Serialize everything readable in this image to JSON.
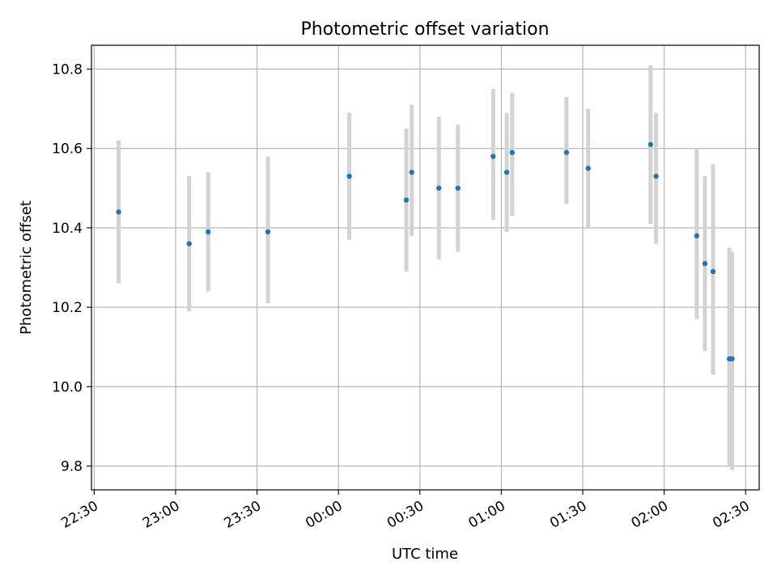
{
  "chart_data": {
    "type": "scatter",
    "title": "Photometric offset variation",
    "xlabel": "UTC time",
    "ylabel": "Photometric offset",
    "grid": true,
    "ylim": [
      9.74,
      10.86
    ],
    "xlim": [
      "22:29",
      "02:35"
    ],
    "y_ticks": [
      9.8,
      10.0,
      10.2,
      10.4,
      10.6,
      10.8
    ],
    "y_tick_labels": [
      "9.8",
      "10.0",
      "10.2",
      "10.4",
      "10.6",
      "10.8"
    ],
    "x_ticks": [
      "22:30",
      "23:00",
      "23:30",
      "00:00",
      "00:30",
      "01:00",
      "01:30",
      "02:00",
      "02:30"
    ],
    "x_tick_labels": [
      "22:30",
      "23:00",
      "23:30",
      "00:00",
      "00:30",
      "01:00",
      "01:30",
      "02:00",
      "02:30"
    ],
    "x_tick_label_rotation": 30,
    "colors": {
      "points": "#1f77b4",
      "errorbars": "#d3d3d3",
      "grid": "#b0b0b0"
    },
    "series": [
      {
        "points": [
          {
            "x": "22:39",
            "y": 10.44,
            "yerr_low": 10.26,
            "yerr_high": 10.62
          },
          {
            "x": "23:05",
            "y": 10.36,
            "yerr_low": 10.19,
            "yerr_high": 10.53
          },
          {
            "x": "23:12",
            "y": 10.39,
            "yerr_low": 10.24,
            "yerr_high": 10.54
          },
          {
            "x": "23:34",
            "y": 10.39,
            "yerr_low": 10.21,
            "yerr_high": 10.58
          },
          {
            "x": "00:04",
            "y": 10.53,
            "yerr_low": 10.37,
            "yerr_high": 10.69
          },
          {
            "x": "00:25",
            "y": 10.47,
            "yerr_low": 10.29,
            "yerr_high": 10.65
          },
          {
            "x": "00:27",
            "y": 10.54,
            "yerr_low": 10.38,
            "yerr_high": 10.71
          },
          {
            "x": "00:37",
            "y": 10.5,
            "yerr_low": 10.32,
            "yerr_high": 10.68
          },
          {
            "x": "00:44",
            "y": 10.5,
            "yerr_low": 10.34,
            "yerr_high": 10.66
          },
          {
            "x": "00:57",
            "y": 10.58,
            "yerr_low": 10.42,
            "yerr_high": 10.75
          },
          {
            "x": "01:02",
            "y": 10.54,
            "yerr_low": 10.39,
            "yerr_high": 10.69
          },
          {
            "x": "01:04",
            "y": 10.59,
            "yerr_low": 10.43,
            "yerr_high": 10.74
          },
          {
            "x": "01:24",
            "y": 10.59,
            "yerr_low": 10.46,
            "yerr_high": 10.73
          },
          {
            "x": "01:32",
            "y": 10.55,
            "yerr_low": 10.4,
            "yerr_high": 10.7
          },
          {
            "x": "01:55",
            "y": 10.61,
            "yerr_low": 10.41,
            "yerr_high": 10.81
          },
          {
            "x": "01:57",
            "y": 10.53,
            "yerr_low": 10.36,
            "yerr_high": 10.69
          },
          {
            "x": "02:12",
            "y": 10.38,
            "yerr_low": 10.17,
            "yerr_high": 10.6
          },
          {
            "x": "02:15",
            "y": 10.31,
            "yerr_low": 10.09,
            "yerr_high": 10.53
          },
          {
            "x": "02:18",
            "y": 10.29,
            "yerr_low": 10.03,
            "yerr_high": 10.56
          },
          {
            "x": "02:24",
            "y": 10.07,
            "yerr_low": 9.8,
            "yerr_high": 10.35
          },
          {
            "x": "02:25",
            "y": 10.07,
            "yerr_low": 9.79,
            "yerr_high": 10.34
          }
        ]
      }
    ]
  }
}
